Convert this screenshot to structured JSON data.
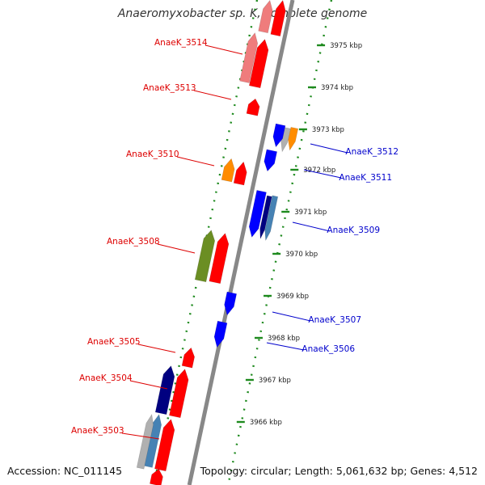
{
  "title": "Anaeromyxobacter sp. K, complete genome",
  "footer": {
    "accession": "Accession: NC_011145",
    "summary": "Topology: circular; Length: 5,061,632 bp; Genes: 4,512"
  },
  "colors": {
    "backbone": "#888888",
    "tick_dots": "#1e8a1e",
    "plus_label": "#dd0000",
    "minus_label": "#0000cc",
    "gene_red": "#ff0000",
    "gene_pink": "#ef7c7c",
    "gene_orange": "#ff8c00",
    "gene_blue": "#0000ff",
    "gene_navy": "#000080",
    "gene_olive": "#6b8e23",
    "gene_steel": "#4682b4",
    "gene_silver": "#b0b0b0"
  },
  "ruler": {
    "unit": "kbp",
    "ticks": [
      "3975 kbp",
      "3974 kbp",
      "3973 kbp",
      "3972 kbp",
      "3971 kbp",
      "3970 kbp",
      "3969 kbp",
      "3968 kbp",
      "3967 kbp",
      "3966 kbp"
    ]
  },
  "genes": [
    {
      "id": "AnaeK_3514",
      "strand": "+",
      "color": "gene_red",
      "label_visible": true
    },
    {
      "id": "AnaeK_3513",
      "strand": "+",
      "color": "gene_red",
      "label_visible": true
    },
    {
      "id": "AnaeK_3512",
      "strand": "-",
      "color": "gene_orange",
      "label_visible": true
    },
    {
      "id": "AnaeK_3511",
      "strand": "-",
      "color": "gene_blue",
      "label_visible": true
    },
    {
      "id": "AnaeK_3510",
      "strand": "+",
      "color": "gene_orange",
      "label_visible": true
    },
    {
      "id": "AnaeK_3509",
      "strand": "-",
      "color": "gene_blue",
      "label_visible": true
    },
    {
      "id": "AnaeK_3508",
      "strand": "+",
      "color": "gene_olive",
      "label_visible": true
    },
    {
      "id": "AnaeK_3507",
      "strand": "-",
      "color": "gene_blue",
      "label_visible": true
    },
    {
      "id": "AnaeK_3506",
      "strand": "-",
      "color": "gene_blue",
      "label_visible": true
    },
    {
      "id": "AnaeK_3505",
      "strand": "+",
      "color": "gene_red",
      "label_visible": true
    },
    {
      "id": "AnaeK_3504",
      "strand": "+",
      "color": "gene_navy",
      "label_visible": true
    },
    {
      "id": "AnaeK_3503",
      "strand": "+",
      "color": "gene_steel",
      "label_visible": true
    }
  ]
}
